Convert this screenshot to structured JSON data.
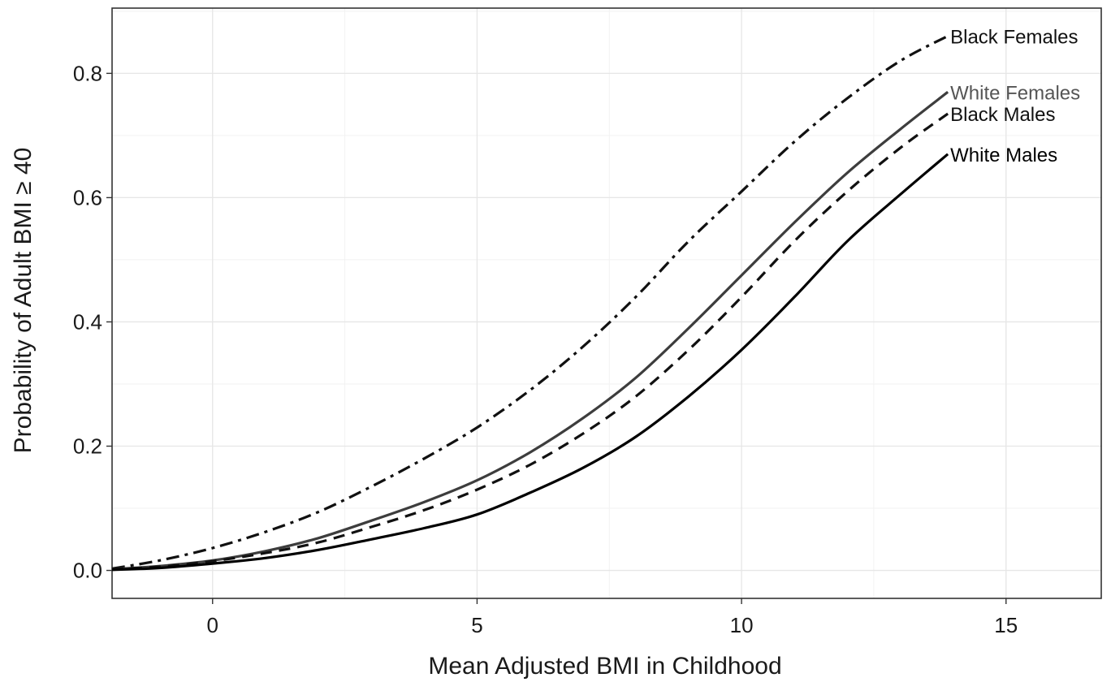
{
  "chart_data": {
    "type": "line",
    "title": "",
    "xlabel": "Mean Adjusted BMI in Childhood",
    "ylabel": "Probability of Adult BMI ≥ 40",
    "xlim": [
      -1.9,
      16.8
    ],
    "ylim": [
      -0.045,
      0.905
    ],
    "x_ticks": [
      0,
      5,
      10,
      15
    ],
    "x_tick_labels": [
      "0",
      "5",
      "10",
      "15"
    ],
    "y_ticks": [
      0.0,
      0.2,
      0.4,
      0.6,
      0.8
    ],
    "y_tick_labels": [
      "0.0",
      "0.2",
      "0.4",
      "0.6",
      "0.8"
    ],
    "grid": true,
    "legend": "direct labels at line ends",
    "series": [
      {
        "name": "Black Females",
        "color": "#111111",
        "dash": "dashdot",
        "x": [
          -1.9,
          -1,
          0,
          1,
          2,
          3,
          4,
          5,
          6,
          7,
          8,
          9,
          10,
          11,
          12,
          13,
          13.9
        ],
        "y": [
          0.003,
          0.016,
          0.036,
          0.062,
          0.094,
          0.135,
          0.18,
          0.23,
          0.29,
          0.36,
          0.44,
          0.53,
          0.61,
          0.69,
          0.76,
          0.82,
          0.86
        ]
      },
      {
        "name": "White Females",
        "color": "#3d3d3d",
        "dash": "solid",
        "x": [
          -1.9,
          -1,
          0,
          1,
          2,
          3,
          4,
          5,
          6,
          7,
          8,
          9,
          10,
          11,
          12,
          13,
          13.9
        ],
        "y": [
          0.002,
          0.007,
          0.016,
          0.031,
          0.052,
          0.08,
          0.11,
          0.145,
          0.19,
          0.245,
          0.31,
          0.39,
          0.475,
          0.56,
          0.64,
          0.71,
          0.77
        ]
      },
      {
        "name": "Black Males",
        "color": "#111111",
        "dash": "dashed",
        "x": [
          -1.9,
          -1,
          0,
          1,
          2,
          3,
          4,
          5,
          6,
          7,
          8,
          9,
          10,
          11,
          12,
          13,
          13.9
        ],
        "y": [
          0.002,
          0.006,
          0.015,
          0.028,
          0.045,
          0.07,
          0.097,
          0.13,
          0.17,
          0.22,
          0.28,
          0.355,
          0.44,
          0.53,
          0.61,
          0.68,
          0.735
        ]
      },
      {
        "name": "White Males",
        "color": "#000000",
        "dash": "solid",
        "x": [
          -1.9,
          -1,
          0,
          1,
          2,
          3,
          4,
          5,
          6,
          7,
          8,
          9,
          10,
          11,
          12,
          13,
          13.9
        ],
        "y": [
          0.001,
          0.004,
          0.011,
          0.02,
          0.033,
          0.05,
          0.068,
          0.09,
          0.125,
          0.165,
          0.215,
          0.28,
          0.355,
          0.44,
          0.53,
          0.605,
          0.67
        ]
      }
    ],
    "series_label_colors": [
      "#111111",
      "#555555",
      "#111111",
      "#000000"
    ]
  }
}
